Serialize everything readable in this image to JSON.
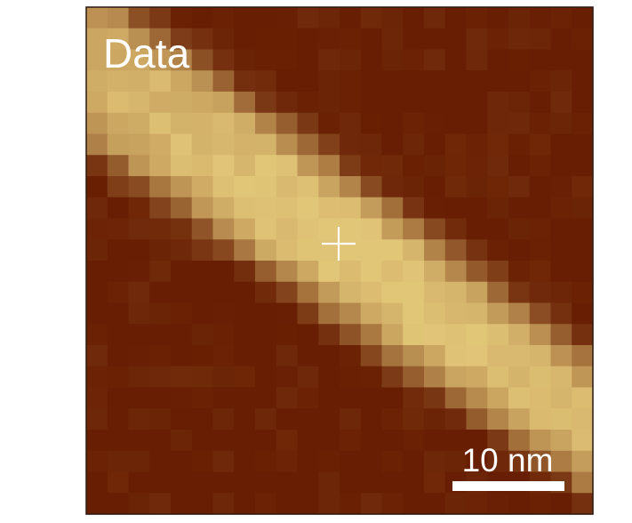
{
  "image": {
    "label": "Data",
    "scale_bar": "10 nm"
  }
}
